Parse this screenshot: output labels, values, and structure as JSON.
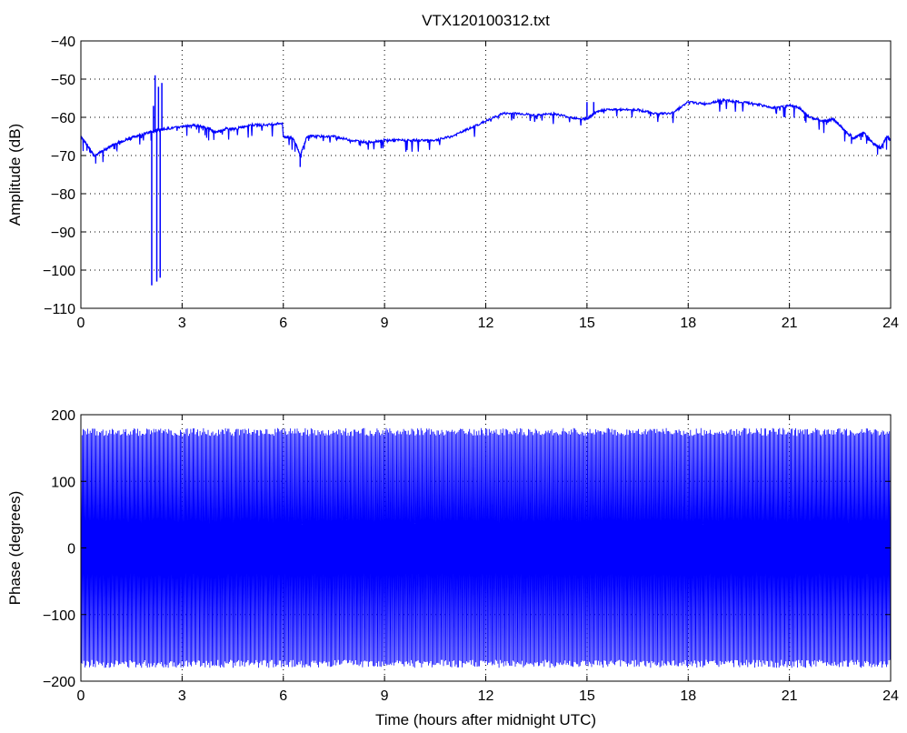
{
  "chart_data": [
    {
      "type": "line",
      "title": "VTX120100312.txt",
      "xlabel": "",
      "ylabel": "Amplitude (dB)",
      "xlim": [
        0,
        24
      ],
      "ylim": [
        -110,
        -40
      ],
      "xticks": [
        0,
        3,
        6,
        9,
        12,
        15,
        18,
        21,
        24
      ],
      "yticks": [
        -110,
        -100,
        -90,
        -80,
        -70,
        -60,
        -50,
        -40
      ],
      "xtick_labels": [
        "0",
        "3",
        "6",
        "9",
        "12",
        "15",
        "18",
        "21",
        "24"
      ],
      "ytick_labels": [
        "−110",
        "−100",
        "−90",
        "−80",
        "−70",
        "−60",
        "−50",
        "−40"
      ],
      "grid": true,
      "line_color": "#0000ff",
      "series": [
        {
          "x": [
            0,
            0.2,
            0.4,
            0.6,
            0.8,
            1.0,
            1.3,
            1.6,
            2.0,
            2.2,
            2.5,
            3.0,
            3.3,
            3.6,
            3.8,
            4.0,
            4.3,
            4.6,
            5.0,
            5.5,
            5.97,
            6.0,
            6.3,
            6.5,
            6.7,
            7.0,
            7.5,
            8.0,
            8.5,
            9.0,
            9.5,
            10.0,
            10.5,
            11.0,
            11.5,
            12.0,
            12.5,
            13.0,
            13.5,
            14.0,
            14.5,
            15.0,
            15.2,
            15.5,
            16.0,
            16.5,
            17.0,
            17.5,
            18.0,
            18.5,
            19.0,
            19.5,
            20.0,
            20.5,
            21.0,
            21.3,
            21.6,
            22.0,
            22.3,
            22.6,
            22.9,
            23.2,
            23.5,
            23.7,
            23.9,
            24.0
          ],
          "y": [
            -65,
            -67.5,
            -70,
            -69,
            -68,
            -67,
            -66,
            -65,
            -64,
            -63.5,
            -63,
            -62.5,
            -62,
            -62.5,
            -63,
            -64,
            -63,
            -63,
            -62,
            -62,
            -61.5,
            -65,
            -65.5,
            -70,
            -65,
            -65,
            -65,
            -66,
            -66.5,
            -66,
            -66,
            -66,
            -66,
            -65,
            -63,
            -61,
            -59,
            -59,
            -59.5,
            -59,
            -60,
            -60.5,
            -59,
            -58,
            -58,
            -58,
            -59,
            -59,
            -56,
            -56.5,
            -55.5,
            -56,
            -56.5,
            -57.5,
            -57,
            -57.5,
            -60,
            -61,
            -60.5,
            -63,
            -65.5,
            -64,
            -67,
            -68,
            -65,
            -66
          ]
        }
      ],
      "spikes": [
        {
          "x": 2.1,
          "y": -104
        },
        {
          "x": 2.15,
          "y": -57
        },
        {
          "x": 2.2,
          "y": -49
        },
        {
          "x": 2.25,
          "y": -103
        },
        {
          "x": 2.3,
          "y": -52
        },
        {
          "x": 2.35,
          "y": -102
        },
        {
          "x": 2.4,
          "y": -51
        },
        {
          "x": 6.5,
          "y": -73
        },
        {
          "x": 15.0,
          "y": -56
        },
        {
          "x": 15.2,
          "y": -56
        }
      ]
    },
    {
      "type": "line",
      "title": "",
      "xlabel": "Time (hours after midnight UTC)",
      "ylabel": "Phase (degrees)",
      "xlim": [
        0,
        24
      ],
      "ylim": [
        -200,
        200
      ],
      "xticks": [
        0,
        3,
        6,
        9,
        12,
        15,
        18,
        21,
        24
      ],
      "yticks": [
        -200,
        -100,
        0,
        100,
        200
      ],
      "xtick_labels": [
        "0",
        "3",
        "6",
        "9",
        "12",
        "15",
        "18",
        "21",
        "24"
      ],
      "ytick_labels": [
        "−200",
        "−100",
        "0",
        "100",
        "200"
      ],
      "grid": true,
      "line_color": "#0000ff",
      "series": [
        {
          "pattern": "dense oscillation wrapping between -180 and 180 degrees across the full 0-24 hour range",
          "amplitude": 180,
          "x_range": [
            0,
            24
          ]
        }
      ]
    }
  ]
}
